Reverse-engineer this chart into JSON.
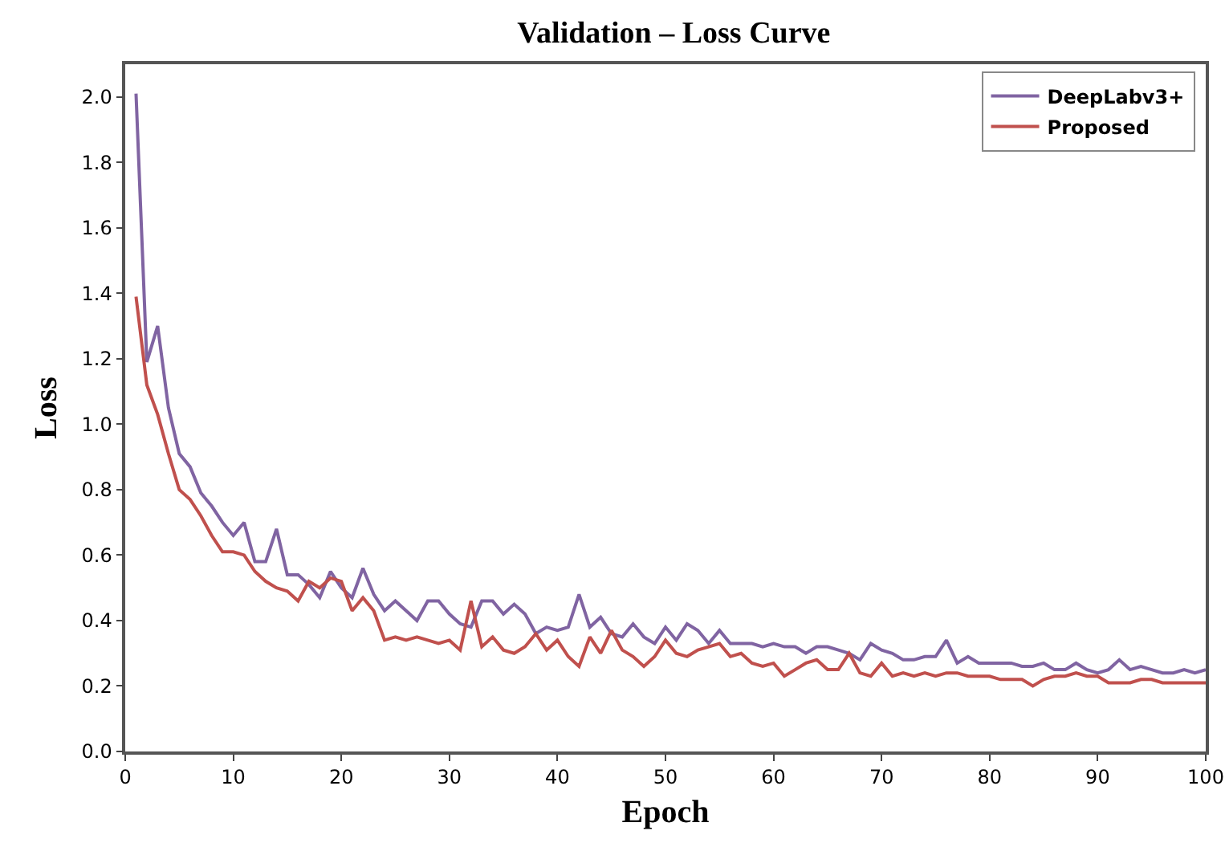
{
  "chart_data": {
    "type": "line",
    "title": "Validation – Loss Curve",
    "xlabel": "Epoch",
    "ylabel": "Loss",
    "x": [
      1,
      2,
      3,
      4,
      5,
      6,
      7,
      8,
      9,
      10,
      11,
      12,
      13,
      14,
      15,
      16,
      17,
      18,
      19,
      20,
      21,
      22,
      23,
      24,
      25,
      26,
      27,
      28,
      29,
      30,
      31,
      32,
      33,
      34,
      35,
      36,
      37,
      38,
      39,
      40,
      41,
      42,
      43,
      44,
      45,
      46,
      47,
      48,
      49,
      50,
      51,
      52,
      53,
      54,
      55,
      56,
      57,
      58,
      59,
      60,
      61,
      62,
      63,
      64,
      65,
      66,
      67,
      68,
      69,
      70,
      71,
      72,
      73,
      74,
      75,
      76,
      77,
      78,
      79,
      80,
      81,
      82,
      83,
      84,
      85,
      86,
      87,
      88,
      89,
      90,
      91,
      92,
      93,
      94,
      95,
      96,
      97,
      98,
      99,
      100
    ],
    "series": [
      {
        "name": "DeepLabv3+",
        "color": "#8064a2",
        "values": [
          2.01,
          1.19,
          1.3,
          1.05,
          0.91,
          0.87,
          0.79,
          0.75,
          0.7,
          0.66,
          0.7,
          0.58,
          0.58,
          0.68,
          0.54,
          0.54,
          0.51,
          0.47,
          0.55,
          0.5,
          0.47,
          0.56,
          0.48,
          0.43,
          0.46,
          0.43,
          0.4,
          0.46,
          0.46,
          0.42,
          0.39,
          0.38,
          0.46,
          0.46,
          0.42,
          0.45,
          0.42,
          0.36,
          0.38,
          0.37,
          0.38,
          0.48,
          0.38,
          0.41,
          0.36,
          0.35,
          0.39,
          0.35,
          0.33,
          0.38,
          0.34,
          0.39,
          0.37,
          0.33,
          0.37,
          0.33,
          0.33,
          0.33,
          0.32,
          0.33,
          0.32,
          0.32,
          0.3,
          0.32,
          0.32,
          0.31,
          0.3,
          0.28,
          0.33,
          0.31,
          0.3,
          0.28,
          0.28,
          0.29,
          0.29,
          0.34,
          0.27,
          0.29,
          0.27,
          0.27,
          0.27,
          0.27,
          0.26,
          0.26,
          0.27,
          0.25,
          0.25,
          0.27,
          0.25,
          0.24,
          0.25,
          0.28,
          0.25,
          0.26,
          0.25,
          0.24,
          0.24,
          0.25,
          0.24,
          0.25
        ]
      },
      {
        "name": "Proposed",
        "color": "#c0504d",
        "values": [
          1.39,
          1.12,
          1.03,
          0.91,
          0.8,
          0.77,
          0.72,
          0.66,
          0.61,
          0.61,
          0.6,
          0.55,
          0.52,
          0.5,
          0.49,
          0.46,
          0.52,
          0.5,
          0.53,
          0.52,
          0.43,
          0.47,
          0.43,
          0.34,
          0.35,
          0.34,
          0.35,
          0.34,
          0.33,
          0.34,
          0.31,
          0.46,
          0.32,
          0.35,
          0.31,
          0.3,
          0.32,
          0.36,
          0.31,
          0.34,
          0.29,
          0.26,
          0.35,
          0.3,
          0.37,
          0.31,
          0.29,
          0.26,
          0.29,
          0.34,
          0.3,
          0.29,
          0.31,
          0.32,
          0.33,
          0.29,
          0.3,
          0.27,
          0.26,
          0.27,
          0.23,
          0.25,
          0.27,
          0.28,
          0.25,
          0.25,
          0.3,
          0.24,
          0.23,
          0.27,
          0.23,
          0.24,
          0.23,
          0.24,
          0.23,
          0.24,
          0.24,
          0.23,
          0.23,
          0.23,
          0.22,
          0.22,
          0.22,
          0.2,
          0.22,
          0.23,
          0.23,
          0.24,
          0.23,
          0.23,
          0.21,
          0.21,
          0.21,
          0.22,
          0.22,
          0.21,
          0.21,
          0.21,
          0.21,
          0.21
        ]
      }
    ],
    "xlim": [
      0,
      100
    ],
    "xticks": [
      0,
      10,
      20,
      30,
      40,
      50,
      60,
      70,
      80,
      90,
      100
    ],
    "ylim": [
      0,
      2.1
    ],
    "yticks": [
      {
        "value": 0,
        "label": "0.0"
      },
      {
        "value": 0.2,
        "label": "0.2"
      },
      {
        "value": 0.4,
        "label": "0.4"
      },
      {
        "value": 0.6,
        "label": "0.6"
      },
      {
        "value": 0.8,
        "label": "0.8"
      },
      {
        "value": 1,
        "label": "1.0"
      },
      {
        "value": 1.2,
        "label": "1.2"
      },
      {
        "value": 1.4,
        "label": "1.4"
      },
      {
        "value": 1.6,
        "label": "1.6"
      },
      {
        "value": 1.8,
        "label": "1.8"
      },
      {
        "value": 2,
        "label": "2.0"
      }
    ],
    "grid": false,
    "legend": "top right",
    "marker": "none",
    "line_style": "solid"
  }
}
